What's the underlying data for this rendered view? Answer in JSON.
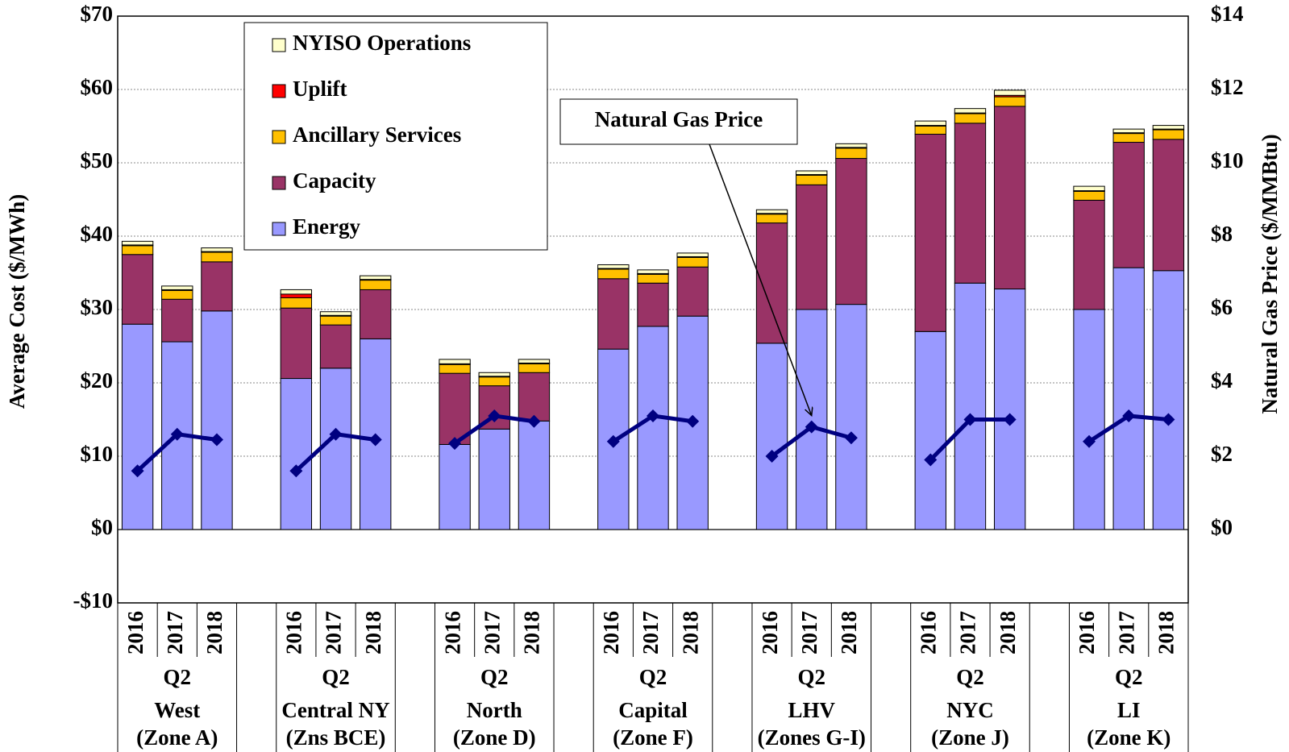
{
  "chart_data": {
    "type": "stacked_bar_line",
    "ylabel": "Average Cost ($/MWh)",
    "y2label": "Natural Gas Price ($/MMBtu)",
    "categories": [
      "2016",
      "2017",
      "2018",
      "2016",
      "2017",
      "2018",
      "2016",
      "2017",
      "2018",
      "2016",
      "2017",
      "2018",
      "2016",
      "2017",
      "2018",
      "2016",
      "2017",
      "2018",
      "2016",
      "2017",
      "2018"
    ],
    "groups": [
      {
        "period": "Q2",
        "region": "West",
        "zone": "(Zone A)"
      },
      {
        "period": "Q2",
        "region": "Central NY",
        "zone": "(Zns BCE)"
      },
      {
        "period": "Q2",
        "region": "North",
        "zone": "(Zone D)"
      },
      {
        "period": "Q2",
        "region": "Capital",
        "zone": "(Zone F)"
      },
      {
        "period": "Q2",
        "region": "LHV",
        "zone": "(Zones G-I)"
      },
      {
        "period": "Q2",
        "region": "NYC",
        "zone": "(Zone J)"
      },
      {
        "period": "Q2",
        "region": "LI",
        "zone": "(Zone K)"
      }
    ],
    "series": [
      {
        "name": "Energy",
        "color": "#9999ff",
        "values": [
          28,
          25.6,
          29.8,
          20.6,
          22,
          26,
          11.6,
          13.7,
          14.8,
          24.6,
          27.7,
          29.1,
          25.4,
          30,
          30.7,
          27,
          33.6,
          32.8,
          30,
          35.7,
          35.3
        ]
      },
      {
        "name": "Capacity",
        "color": "#993366",
        "values": [
          9.5,
          5.8,
          6.7,
          9.6,
          5.9,
          6.7,
          9.7,
          5.9,
          6.6,
          9.6,
          5.9,
          6.7,
          16.4,
          17,
          19.9,
          26.9,
          21.8,
          24.9,
          14.9,
          17.1,
          17.9
        ]
      },
      {
        "name": "Ancillary Services",
        "color": "#ffc000",
        "values": [
          1.2,
          1.2,
          1.3,
          1.4,
          1.2,
          1.3,
          1.2,
          1.2,
          1.2,
          1.3,
          1.2,
          1.3,
          1.2,
          1.3,
          1.4,
          1.1,
          1.3,
          1.3,
          1.2,
          1.2,
          1.3
        ]
      },
      {
        "name": "Uplift",
        "color": "#ff0000",
        "values": [
          0.1,
          0.1,
          0.1,
          0.5,
          0.1,
          0.1,
          0.1,
          0.1,
          0.1,
          0.1,
          0.1,
          0.1,
          0.1,
          0.1,
          0.1,
          0.1,
          0.1,
          0.2,
          0.1,
          0.1,
          0.1
        ]
      },
      {
        "name": "NYISO Operations",
        "color": "#ffffcc",
        "values": [
          0.5,
          0.5,
          0.5,
          0.6,
          0.5,
          0.5,
          0.6,
          0.5,
          0.5,
          0.5,
          0.5,
          0.5,
          0.5,
          0.5,
          0.5,
          0.6,
          0.6,
          0.7,
          0.6,
          0.5,
          0.5
        ]
      },
      {
        "name": "Natural Gas Price",
        "color": "#000080",
        "axis": "y2",
        "values": [
          1.6,
          2.6,
          2.45,
          1.6,
          2.6,
          2.45,
          2.35,
          3.1,
          2.95,
          2.4,
          3.1,
          2.95,
          2.0,
          2.8,
          2.5,
          1.9,
          3.0,
          3.0,
          2.4,
          3.1,
          3.0
        ]
      }
    ],
    "ylim": [
      -10,
      70
    ],
    "yticks": [
      {
        "value": -10,
        "label": "-$10"
      },
      {
        "value": 0,
        "label": "$0"
      },
      {
        "value": 10,
        "label": "$10"
      },
      {
        "value": 20,
        "label": "$20"
      },
      {
        "value": 30,
        "label": "$30"
      },
      {
        "value": 40,
        "label": "$40"
      },
      {
        "value": 50,
        "label": "$50"
      },
      {
        "value": 60,
        "label": "$60"
      },
      {
        "value": 70,
        "label": "$70"
      }
    ],
    "y2lim": [
      -2,
      14
    ],
    "y2ticks": [
      {
        "value": 0,
        "label": "$0"
      },
      {
        "value": 2,
        "label": "$2"
      },
      {
        "value": 4,
        "label": "$4"
      },
      {
        "value": 6,
        "label": "$6"
      },
      {
        "value": 8,
        "label": "$8"
      },
      {
        "value": 10,
        "label": "$10"
      },
      {
        "value": 12,
        "label": "$12"
      },
      {
        "value": 14,
        "label": "$14"
      }
    ],
    "grid": true,
    "legend": "upper left"
  }
}
